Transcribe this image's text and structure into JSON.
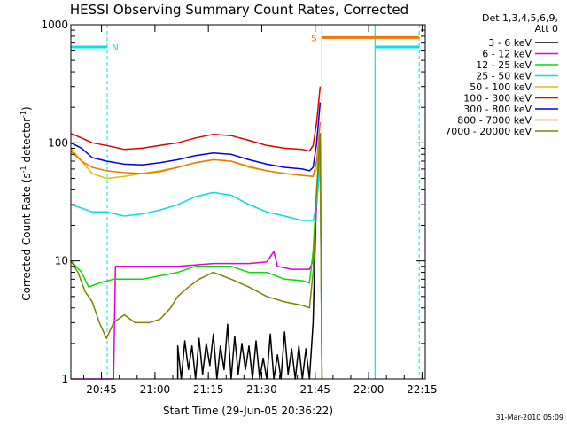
{
  "chart_data": {
    "type": "line",
    "title": "HESSI Observing Summary Count Rates, Corrected",
    "xlabel": "Start Time (29-Jun-05 20:36:22)",
    "ylabel_main": "Corrected Count Rate (s",
    "ylabel_sup1": "-1",
    "ylabel_mid": " detector",
    "ylabel_sup2": "-1",
    "ylabel_end": ")",
    "yscale": "log",
    "ylim": [
      1,
      1000
    ],
    "xlim_minutes": [
      0,
      99.5
    ],
    "x_unit": "minutes after 20:36:22",
    "x_ticks": [
      {
        "label": "20:45",
        "minutes": 8.6
      },
      {
        "label": "21:00",
        "minutes": 23.6
      },
      {
        "label": "21:15",
        "minutes": 38.6
      },
      {
        "label": "21:30",
        "minutes": 53.6
      },
      {
        "label": "21:45",
        "minutes": 68.6
      },
      {
        "label": "22:00",
        "minutes": 83.6
      },
      {
        "label": "22:15",
        "minutes": 98.6
      }
    ],
    "y_ticks": [
      {
        "label": "1",
        "value": 1
      },
      {
        "label": "10",
        "value": 10
      },
      {
        "label": "100",
        "value": 100
      },
      {
        "label": "1000",
        "value": 1000
      }
    ],
    "legend_header": [
      "Det 1,3,4,5,6,9,",
      "Att 0"
    ],
    "legend_position": "right",
    "flags": [
      {
        "label": "N",
        "color": "#00e5e5",
        "level": 650,
        "segments": [
          [
            0,
            10.2
          ],
          [
            85.4,
            97.8
          ]
        ],
        "dashed_x": [
          10.2,
          97.8
        ],
        "solid_x": [
          85.4
        ]
      },
      {
        "label": "S",
        "color": "#f07800",
        "level": 780,
        "segments": [
          [
            70.5,
            97.8
          ]
        ],
        "solid_x": [
          70.5
        ]
      }
    ],
    "series": [
      {
        "name": "3 - 6 keV",
        "color": "#000000",
        "points": [
          [
            30,
            1
          ],
          [
            30,
            1.9
          ],
          [
            31,
            1
          ],
          [
            32,
            2.1
          ],
          [
            33,
            1.2
          ],
          [
            34,
            1.9
          ],
          [
            35,
            1
          ],
          [
            36,
            2.2
          ],
          [
            37,
            1.1
          ],
          [
            38,
            2
          ],
          [
            39,
            1.3
          ],
          [
            40,
            2.4
          ],
          [
            41,
            1
          ],
          [
            42,
            1.9
          ],
          [
            43,
            1.2
          ],
          [
            44,
            2.9
          ],
          [
            45,
            1
          ],
          [
            46,
            2.3
          ],
          [
            47,
            1.1
          ],
          [
            48,
            2
          ],
          [
            49,
            1.2
          ],
          [
            50,
            1.9
          ],
          [
            51,
            1
          ],
          [
            52,
            2.1
          ],
          [
            53,
            1
          ],
          [
            54,
            1.5
          ],
          [
            55,
            1
          ],
          [
            56,
            2.4
          ],
          [
            57,
            1
          ],
          [
            58,
            1.6
          ],
          [
            59,
            1
          ],
          [
            60,
            2.5
          ],
          [
            61,
            1.1
          ],
          [
            62,
            1.8
          ],
          [
            63,
            1
          ],
          [
            64,
            1.9
          ],
          [
            65,
            1
          ],
          [
            66,
            1.8
          ],
          [
            67,
            1
          ],
          [
            68,
            3
          ],
          [
            69,
            40
          ]
        ]
      },
      {
        "name": "6 - 12 keV",
        "color": "#e000e0",
        "points": [
          [
            0,
            1
          ],
          [
            12,
            1
          ],
          [
            12.5,
            9
          ],
          [
            20,
            9
          ],
          [
            30,
            9
          ],
          [
            40,
            9.5
          ],
          [
            50,
            9.5
          ],
          [
            55,
            9.8
          ],
          [
            57,
            12
          ],
          [
            58,
            9
          ],
          [
            62,
            8.5
          ],
          [
            67,
            8.5
          ],
          [
            68,
            10
          ],
          [
            69,
            30
          ],
          [
            70,
            80
          ],
          [
            70.5,
            1
          ]
        ]
      },
      {
        "name": "12 - 25 keV",
        "color": "#00e000",
        "points": [
          [
            0,
            10
          ],
          [
            3,
            8
          ],
          [
            5,
            6
          ],
          [
            8,
            6.5
          ],
          [
            12,
            7
          ],
          [
            20,
            7
          ],
          [
            30,
            8
          ],
          [
            35,
            9
          ],
          [
            40,
            9
          ],
          [
            45,
            9
          ],
          [
            50,
            8
          ],
          [
            55,
            8
          ],
          [
            60,
            7
          ],
          [
            65,
            6.8
          ],
          [
            67,
            6.5
          ],
          [
            68,
            12
          ],
          [
            69,
            40
          ],
          [
            70,
            100
          ],
          [
            70.5,
            1
          ]
        ]
      },
      {
        "name": "25 - 50 keV",
        "color": "#00e0e0",
        "points": [
          [
            0,
            30
          ],
          [
            3,
            28
          ],
          [
            6,
            26
          ],
          [
            10,
            26
          ],
          [
            15,
            24
          ],
          [
            20,
            25
          ],
          [
            25,
            27
          ],
          [
            30,
            30
          ],
          [
            35,
            35
          ],
          [
            40,
            38
          ],
          [
            45,
            36
          ],
          [
            50,
            30
          ],
          [
            55,
            26
          ],
          [
            60,
            24
          ],
          [
            65,
            22
          ],
          [
            68,
            22
          ],
          [
            69,
            30
          ],
          [
            70,
            70
          ],
          [
            70.5,
            1
          ]
        ]
      },
      {
        "name": "50 - 100 keV",
        "color": "#e0c000",
        "points": [
          [
            0,
            90
          ],
          [
            3,
            70
          ],
          [
            6,
            55
          ],
          [
            10,
            50
          ],
          [
            15,
            52
          ],
          [
            20,
            55
          ],
          [
            25,
            58
          ],
          [
            30,
            62
          ],
          [
            35,
            68
          ],
          [
            40,
            72
          ],
          [
            45,
            70
          ],
          [
            50,
            62
          ],
          [
            55,
            58
          ],
          [
            60,
            55
          ],
          [
            65,
            53
          ],
          [
            68,
            52
          ],
          [
            69,
            60
          ],
          [
            70,
            100
          ],
          [
            70.5,
            1
          ]
        ]
      },
      {
        "name": "100 - 300 keV",
        "color": "#e00000",
        "points": [
          [
            0,
            120
          ],
          [
            3,
            110
          ],
          [
            6,
            100
          ],
          [
            10,
            95
          ],
          [
            15,
            88
          ],
          [
            20,
            90
          ],
          [
            25,
            95
          ],
          [
            30,
            100
          ],
          [
            35,
            110
          ],
          [
            40,
            118
          ],
          [
            45,
            115
          ],
          [
            50,
            105
          ],
          [
            55,
            95
          ],
          [
            60,
            90
          ],
          [
            65,
            88
          ],
          [
            67,
            85
          ],
          [
            68,
            95
          ],
          [
            69,
            150
          ],
          [
            70,
            300
          ]
        ]
      },
      {
        "name": "300 - 800 keV",
        "color": "#0000e0",
        "points": [
          [
            0,
            100
          ],
          [
            3,
            90
          ],
          [
            6,
            75
          ],
          [
            10,
            70
          ],
          [
            15,
            66
          ],
          [
            20,
            65
          ],
          [
            25,
            68
          ],
          [
            30,
            72
          ],
          [
            35,
            78
          ],
          [
            40,
            82
          ],
          [
            45,
            80
          ],
          [
            50,
            72
          ],
          [
            55,
            66
          ],
          [
            60,
            62
          ],
          [
            65,
            60
          ],
          [
            67,
            58
          ],
          [
            68,
            62
          ],
          [
            69,
            100
          ],
          [
            70,
            220
          ]
        ]
      },
      {
        "name": "800 - 7000 keV",
        "color": "#f07800",
        "points": [
          [
            0,
            85
          ],
          [
            3,
            70
          ],
          [
            6,
            62
          ],
          [
            10,
            58
          ],
          [
            15,
            56
          ],
          [
            20,
            55
          ],
          [
            25,
            57
          ],
          [
            30,
            62
          ],
          [
            35,
            68
          ],
          [
            40,
            72
          ],
          [
            45,
            70
          ],
          [
            50,
            63
          ],
          [
            55,
            58
          ],
          [
            60,
            55
          ],
          [
            65,
            53
          ],
          [
            68,
            52
          ],
          [
            69,
            70
          ],
          [
            70,
            150
          ]
        ]
      },
      {
        "name": "7000 - 20000 keV",
        "color": "#808000",
        "points": [
          [
            0,
            10
          ],
          [
            2,
            8
          ],
          [
            4,
            5.5
          ],
          [
            6,
            4.5
          ],
          [
            8,
            3
          ],
          [
            10,
            2.2
          ],
          [
            12,
            3
          ],
          [
            15,
            3.5
          ],
          [
            18,
            3
          ],
          [
            22,
            3
          ],
          [
            25,
            3.2
          ],
          [
            28,
            4
          ],
          [
            30,
            5
          ],
          [
            33,
            6
          ],
          [
            36,
            7
          ],
          [
            40,
            8
          ],
          [
            45,
            7
          ],
          [
            50,
            6
          ],
          [
            55,
            5
          ],
          [
            60,
            4.5
          ],
          [
            65,
            4.2
          ],
          [
            67,
            4
          ],
          [
            68,
            8
          ],
          [
            69,
            40
          ],
          [
            70,
            120
          ],
          [
            70.5,
            1
          ]
        ]
      }
    ]
  },
  "timestamp": "31-Mar-2010 05:09"
}
